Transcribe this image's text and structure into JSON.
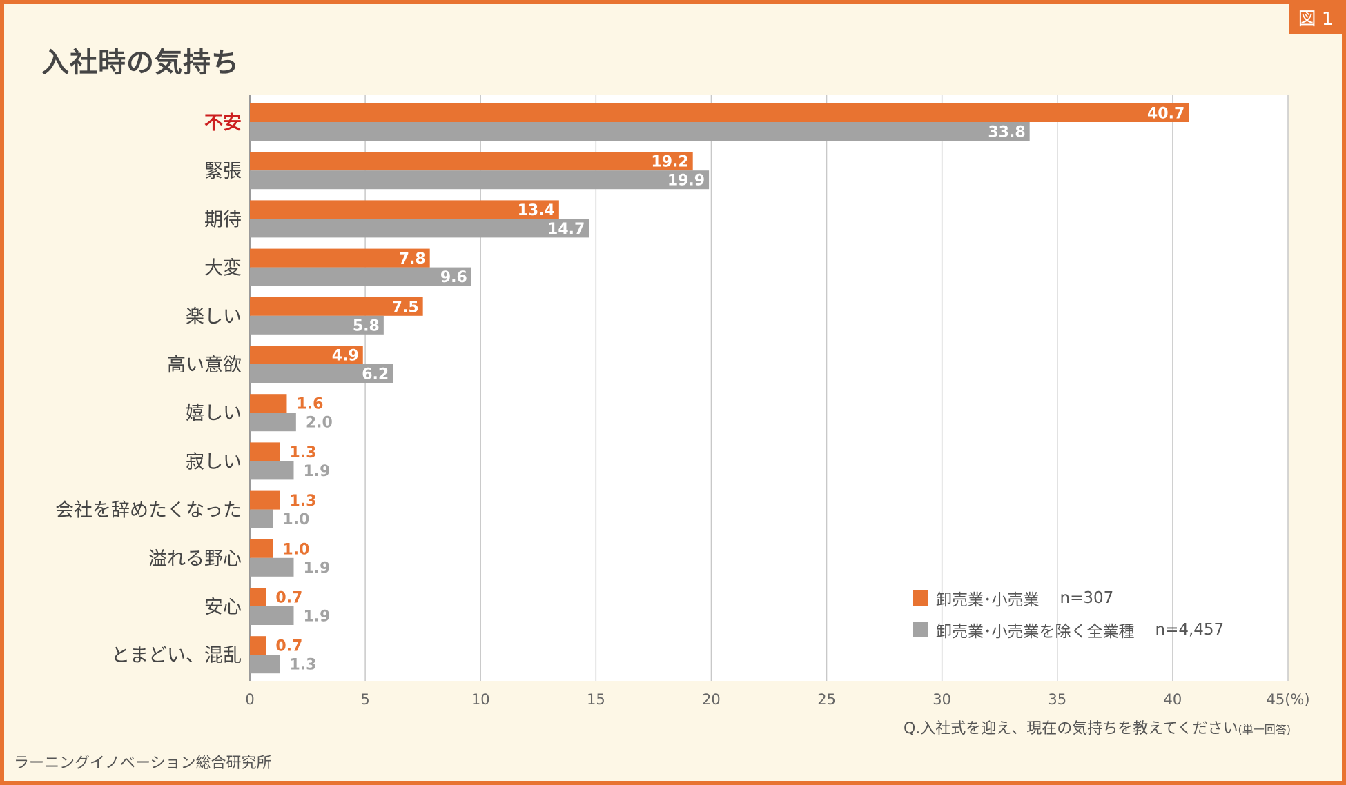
{
  "figure_label": "図 1",
  "title": "入社時の気持ち",
  "question_main": "Q.入社式を迎え、現在の気持ちを教えてください",
  "question_note": "(単一回答)",
  "source": "ラーニングイノベーション総合研究所",
  "colors": {
    "accent": "#e87331",
    "gray_series": "#a3a3a3",
    "highlight_label": "#cc1f1f",
    "background": "#fdf7e6"
  },
  "legend": [
    {
      "label": "卸売業･小売業",
      "n": "n=307"
    },
    {
      "label": "卸売業･小売業を除く全業種",
      "n": "n=4,457"
    }
  ],
  "chart_data": {
    "type": "bar",
    "orientation": "horizontal",
    "categories": [
      "不安",
      "緊張",
      "期待",
      "大変",
      "楽しい",
      "高い意欲",
      "嬉しい",
      "寂しい",
      "会社を辞めたくなった",
      "溢れる野心",
      "安心",
      "とまどい、混乱"
    ],
    "highlight_category": "不安",
    "series": [
      {
        "name": "卸売業･小売業",
        "values": [
          40.7,
          19.2,
          13.4,
          7.8,
          7.5,
          4.9,
          1.6,
          1.3,
          1.3,
          1.0,
          0.7,
          0.7
        ],
        "color": "#e87331"
      },
      {
        "name": "卸売業･小売業を除く全業種",
        "values": [
          33.8,
          19.9,
          14.7,
          9.6,
          5.8,
          6.2,
          2.0,
          1.9,
          1.0,
          1.9,
          1.9,
          1.3
        ],
        "color": "#a3a3a3"
      }
    ],
    "value_labels": [
      [
        "40.7",
        "19.2",
        "13.4",
        "7.8",
        "7.5",
        "4.9",
        "1.6",
        "1.3",
        "1.3",
        "1.0",
        "0.7",
        "0.7"
      ],
      [
        "33.8",
        "19.9",
        "14.7",
        "9.6",
        "5.8",
        "6.2",
        "2.0",
        "1.9",
        "1.0",
        "1.9",
        "1.9",
        "1.3"
      ]
    ],
    "xlim": [
      0,
      45
    ],
    "xticks": [
      0,
      5,
      10,
      15,
      20,
      25,
      30,
      35,
      40,
      45
    ],
    "xtick_labels": [
      "0",
      "5",
      "10",
      "15",
      "20",
      "25",
      "30",
      "35",
      "40",
      "45"
    ],
    "x_unit": "(%)",
    "grid": true,
    "legend_position": "bottom-right"
  }
}
